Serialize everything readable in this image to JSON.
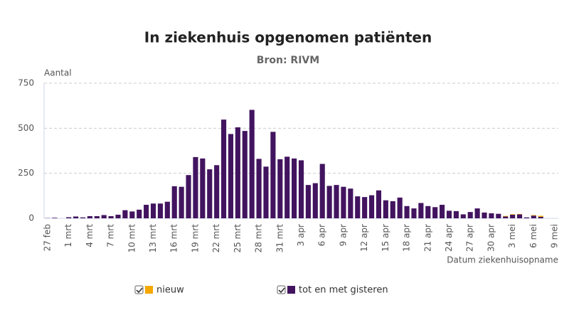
{
  "chart_data": {
    "type": "stacked_bar",
    "title": "In ziekenhuis opgenomen patiënten",
    "subtitle": "Bron: RIVM",
    "y_label": "Aantal",
    "x_label": "Datum ziekenhuisopname",
    "categories": [
      "27 feb",
      null,
      null,
      "1 mrt",
      null,
      null,
      "4 mrt",
      null,
      null,
      "7 mrt",
      null,
      null,
      "10 mrt",
      null,
      null,
      "13 mrt",
      null,
      null,
      "16 mrt",
      null,
      null,
      "19 mrt",
      null,
      null,
      "22 mrt",
      null,
      null,
      "25 mrt",
      null,
      null,
      "28 mrt",
      null,
      null,
      "31 mrt",
      null,
      null,
      "3 apr",
      null,
      null,
      "6 apr",
      null,
      null,
      "9 apr",
      null,
      null,
      "12 apr",
      null,
      null,
      "15 apr",
      null,
      null,
      "18 apr",
      null,
      null,
      "21 apr",
      null,
      null,
      "24 apr",
      null,
      null,
      "27 apr",
      null,
      null,
      "30 apr",
      null,
      null,
      "3 mei",
      null,
      null,
      "6 mei",
      null,
      null,
      "9 mei"
    ],
    "series": [
      {
        "name": "nieuw",
        "color": "#f5a800",
        "values": [
          0,
          0,
          0,
          0,
          0,
          0,
          0,
          0,
          0,
          0,
          0,
          0,
          0,
          0,
          0,
          0,
          0,
          0,
          0,
          0,
          0,
          0,
          0,
          0,
          0,
          0,
          0,
          0,
          0,
          0,
          0,
          0,
          0,
          0,
          0,
          0,
          0,
          0,
          0,
          0,
          0,
          0,
          0,
          0,
          0,
          0,
          0,
          0,
          0,
          0,
          0,
          0,
          0,
          0,
          0,
          0,
          0,
          0,
          0,
          0,
          0,
          0,
          0,
          0,
          0,
          3,
          3,
          2,
          0,
          3,
          6,
          0,
          0
        ]
      },
      {
        "name": "tot en met gisteren",
        "color": "#42145f",
        "values": [
          1,
          3,
          0,
          6,
          10,
          5,
          12,
          12,
          18,
          12,
          20,
          45,
          38,
          48,
          75,
          82,
          82,
          92,
          178,
          175,
          240,
          340,
          332,
          272,
          295,
          548,
          468,
          505,
          485,
          602,
          330,
          287,
          480,
          328,
          342,
          332,
          322,
          185,
          195,
          302,
          180,
          185,
          175,
          165,
          122,
          118,
          128,
          155,
          100,
          95,
          115,
          68,
          55,
          85,
          68,
          62,
          75,
          42,
          40,
          22,
          35,
          55,
          32,
          28,
          25,
          10,
          20,
          22,
          5,
          15,
          8,
          0,
          0
        ]
      }
    ],
    "ylim": [
      0,
      750
    ],
    "yticks": [
      0,
      250,
      500,
      750
    ],
    "grid": true
  }
}
